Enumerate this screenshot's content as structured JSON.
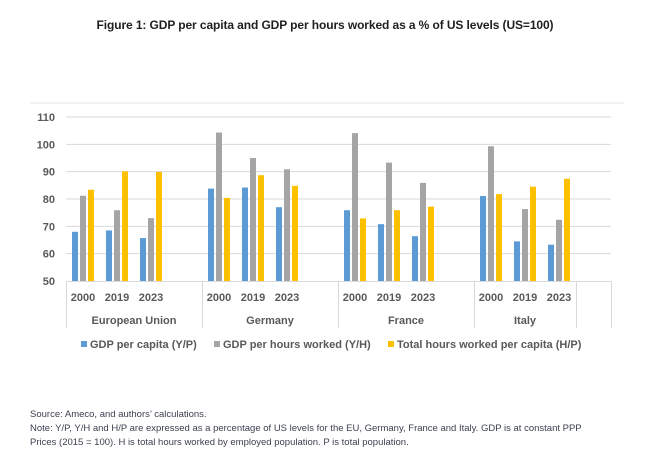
{
  "title": "Figure 1: GDP per capita and GDP per hours worked as a % of US levels (US=100)",
  "footer": {
    "source": "Source: Ameco, and authors’ calculations.",
    "note_line1": "Note: Y/P, Y/H and H/P are expressed as a percentage of US levels for the EU, Germany, France and Italy. GDP is at constant PPP",
    "note_line2": "Prices (2015 = 100). H is total hours worked by employed population. P is total population."
  },
  "chart_data": {
    "type": "bar",
    "title": "Figure 1: GDP per capita and GDP per hours worked as a % of US levels (US=100)",
    "xlabel": "",
    "ylabel": "",
    "ylim": [
      50,
      110
    ],
    "yticks": [
      50,
      60,
      70,
      80,
      90,
      100,
      110
    ],
    "grid": true,
    "legend_position": "bottom",
    "groups": [
      {
        "name": "European Union",
        "years": [
          "2000",
          "2019",
          "2023"
        ]
      },
      {
        "name": "Germany",
        "years": [
          "2000",
          "2019",
          "2023"
        ]
      },
      {
        "name": "France",
        "years": [
          "2000",
          "2019",
          "2023"
        ]
      },
      {
        "name": "Italy",
        "years": [
          "2000",
          "2019",
          "2023"
        ]
      }
    ],
    "categories": [
      "EU 2000",
      "EU 2019",
      "EU 2023",
      "Germany 2000",
      "Germany 2019",
      "Germany 2023",
      "France 2000",
      "France 2019",
      "France 2023",
      "Italy 2000",
      "Italy 2019",
      "Italy 2023"
    ],
    "series": [
      {
        "name": "GDP per capita (Y/P)",
        "color": "#5B9BD5",
        "values": [
          68,
          68.5,
          65.7,
          83.8,
          84.2,
          77,
          75.9,
          70.8,
          66.4,
          81.1,
          64.5,
          63.3
        ]
      },
      {
        "name": "GDP per hours worked (Y/H)",
        "color": "#A5A5A5",
        "values": [
          81.2,
          75.9,
          73,
          104.3,
          95,
          90.9,
          104.1,
          93.3,
          85.9,
          99.3,
          76.3,
          72.4
        ]
      },
      {
        "name": "Total hours worked per capita (H/P)",
        "color": "#FFC000",
        "values": [
          83.4,
          90.1,
          89.9,
          80.4,
          88.7,
          84.8,
          72.9,
          75.9,
          77.2,
          81.8,
          84.5,
          87.4
        ]
      }
    ]
  }
}
